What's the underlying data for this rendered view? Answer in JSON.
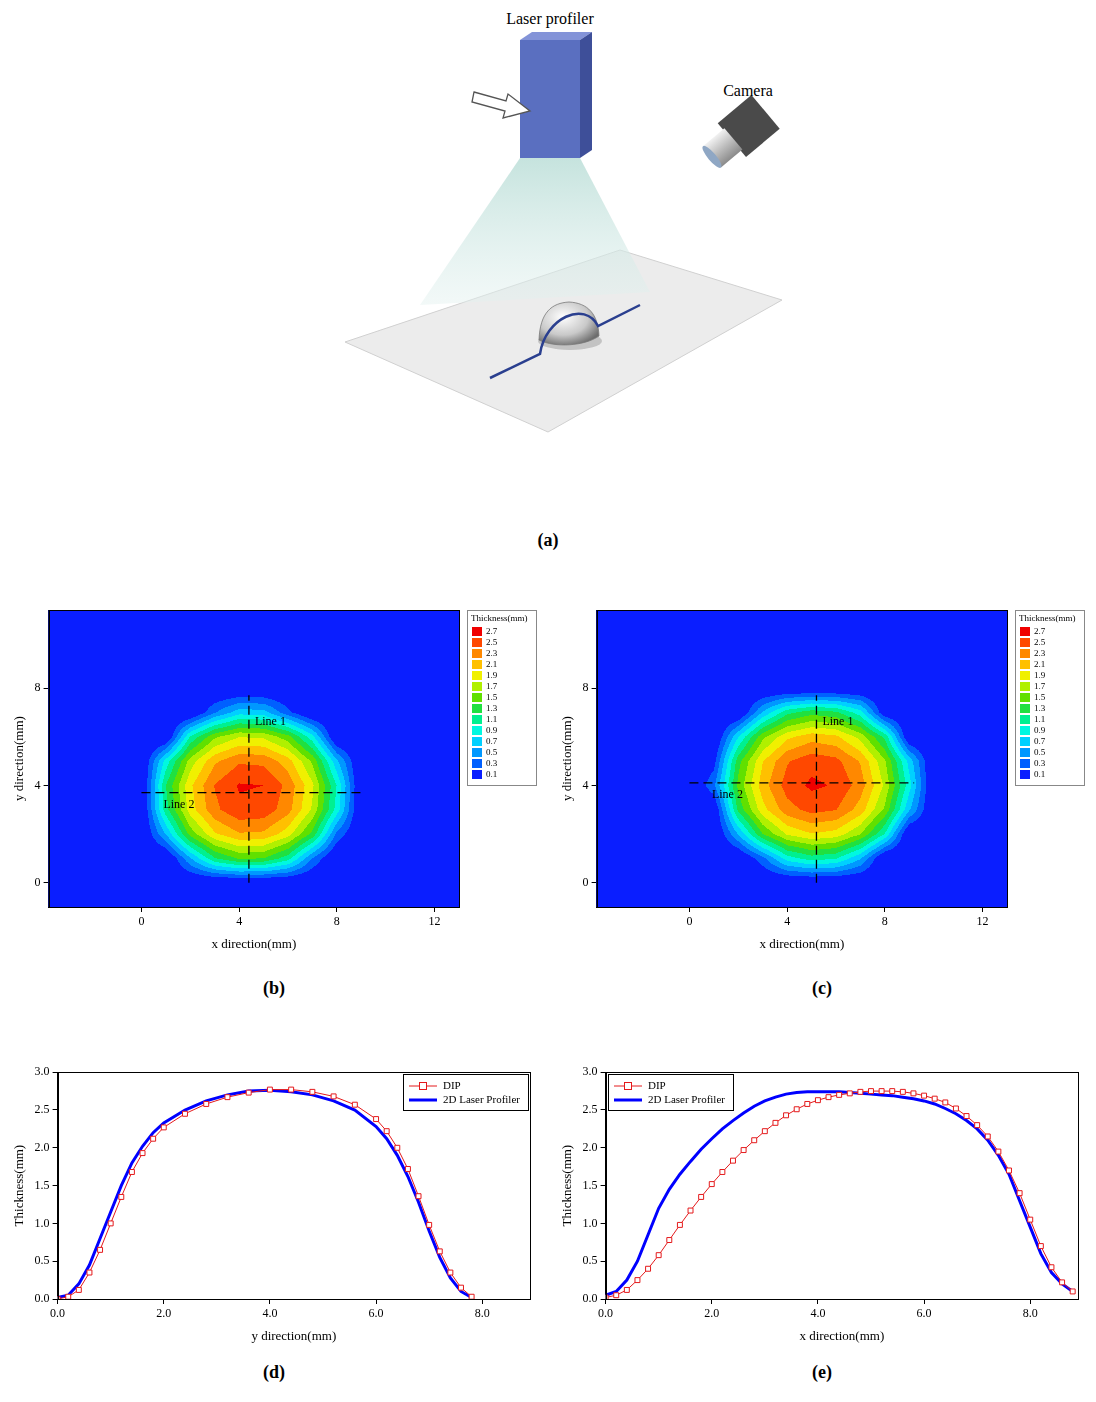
{
  "figure_a": {
    "panel_label": "(a)",
    "nodes": [
      {
        "label": "Laser profiler"
      },
      {
        "label": "Camera"
      }
    ]
  },
  "chart_data": [
    {
      "type": "contour",
      "panel_label": "(b)",
      "xlabel": "x direction(mm)",
      "ylabel": "y direction(mm)",
      "xlim": [
        -3.8,
        13
      ],
      "ylim": [
        -1,
        11.2
      ],
      "xticks": [
        0,
        4,
        8,
        12
      ],
      "yticks": [
        0,
        4,
        8
      ],
      "grid": false,
      "colorbar": {
        "title": "Thickness(mm)",
        "levels": [
          0.1,
          0.3,
          0.5,
          0.7,
          0.9,
          1.1,
          1.3,
          1.5,
          1.7,
          1.9,
          2.1,
          2.3,
          2.5,
          2.7
        ],
        "colors": [
          "#0a1eff",
          "#0060ff",
          "#0098ff",
          "#00d0ff",
          "#00f8e0",
          "#00f090",
          "#20e040",
          "#60e000",
          "#b0f000",
          "#f0f000",
          "#ffc000",
          "#ff8800",
          "#ff4800",
          "#f00000"
        ]
      },
      "field": {
        "x": [
          0,
          1,
          2,
          3,
          4,
          5,
          6,
          7,
          8,
          9
        ],
        "y": [
          0,
          1,
          2,
          3,
          4,
          5,
          6,
          7,
          8
        ],
        "values": [
          [
            0,
            0,
            0,
            0,
            0,
            0,
            0,
            0,
            0,
            0
          ],
          [
            0,
            0,
            0.68,
            1.28,
            1.53,
            1.5,
            1.19,
            0.49,
            0,
            0
          ],
          [
            0,
            0.71,
            1.58,
            2.07,
            2.28,
            2.26,
            1.99,
            1.44,
            0.45,
            0
          ],
          [
            0,
            1.22,
            2.0,
            2.45,
            2.66,
            2.63,
            2.38,
            1.87,
            1.01,
            0
          ],
          [
            0,
            1.3,
            2.06,
            2.51,
            2.72,
            2.7,
            2.44,
            1.94,
            1.09,
            0
          ],
          [
            0,
            0.98,
            1.79,
            2.26,
            2.47,
            2.45,
            2.19,
            1.66,
            0.74,
            0
          ],
          [
            0,
            0,
            1.12,
            1.66,
            1.89,
            1.86,
            1.58,
            0.97,
            0,
            0
          ],
          [
            0,
            0,
            0,
            0.48,
            0.81,
            0.78,
            0.36,
            0,
            0,
            0
          ],
          [
            0,
            0,
            0,
            0,
            0,
            0,
            0,
            0,
            0,
            0
          ]
        ]
      },
      "lines": [
        {
          "label": "Line 1",
          "x": [
            4.4,
            4.4
          ],
          "y": [
            0,
            7.7
          ]
        },
        {
          "label": "Line 2",
          "x": [
            0,
            9
          ],
          "y": [
            3.7,
            3.7
          ]
        }
      ]
    },
    {
      "type": "contour",
      "panel_label": "(c)",
      "xlabel": "x direction(mm)",
      "ylabel": "y direction(mm)",
      "xlim": [
        -3.8,
        13
      ],
      "ylim": [
        -1,
        11.2
      ],
      "xticks": [
        0,
        4,
        8,
        12
      ],
      "yticks": [
        0,
        4,
        8
      ],
      "grid": false,
      "colorbar": {
        "title": "Thickness(mm)",
        "levels": [
          0.1,
          0.3,
          0.5,
          0.7,
          0.9,
          1.1,
          1.3,
          1.5,
          1.7,
          1.9,
          2.1,
          2.3,
          2.5,
          2.7
        ],
        "colors": [
          "#0a1eff",
          "#0060ff",
          "#0098ff",
          "#00d0ff",
          "#00f8e0",
          "#00f090",
          "#20e040",
          "#60e000",
          "#b0f000",
          "#f0f000",
          "#ffc000",
          "#ff8800",
          "#ff4800",
          "#f00000"
        ]
      },
      "field": {
        "x": [
          0,
          1,
          2,
          3,
          4,
          5,
          6,
          7,
          8,
          9,
          10
        ],
        "y": [
          0,
          1,
          2,
          3,
          4,
          5,
          6,
          7,
          8
        ],
        "values": [
          [
            0,
            0,
            0,
            0,
            0,
            0,
            0,
            0,
            0,
            0,
            0
          ],
          [
            0,
            0,
            0,
            0.43,
            1.0,
            1.2,
            1.12,
            0.72,
            0,
            0,
            0
          ],
          [
            0,
            0,
            0.71,
            1.5,
            1.93,
            2.09,
            2.02,
            1.71,
            1.09,
            0,
            0
          ],
          [
            0,
            0.05,
            1.35,
            2.03,
            2.42,
            2.57,
            2.51,
            2.21,
            1.66,
            0.73,
            0
          ],
          [
            0,
            0.45,
            1.56,
            2.21,
            2.59,
            2.74,
            2.68,
            2.4,
            1.86,
            0.98,
            0
          ],
          [
            0,
            0.21,
            1.42,
            2.09,
            2.48,
            2.63,
            2.56,
            2.28,
            1.73,
            0.82,
            0
          ],
          [
            0,
            0,
            0.89,
            1.64,
            2.05,
            2.21,
            2.14,
            1.83,
            1.24,
            0.04,
            0
          ],
          [
            0,
            0,
            0,
            0.72,
            1.23,
            1.42,
            1.34,
            0.98,
            0.1,
            0,
            0
          ],
          [
            0,
            0,
            0,
            0,
            0,
            0,
            0,
            0,
            0,
            0,
            0
          ]
        ]
      },
      "lines": [
        {
          "label": "Line 1",
          "x": [
            5.2,
            5.2
          ],
          "y": [
            0,
            7.7
          ]
        },
        {
          "label": "Line 2",
          "x": [
            0,
            9.2
          ],
          "y": [
            4.1,
            4.1
          ]
        }
      ]
    },
    {
      "type": "line",
      "panel_label": "(d)",
      "xlabel": "y direction(mm)",
      "ylabel": "Thickness(mm)",
      "xlim": [
        0,
        8.9
      ],
      "ylim": [
        0,
        3
      ],
      "xticks": [
        {
          "value": 0,
          "label": "0.0"
        },
        {
          "value": 2,
          "label": "2.0"
        },
        {
          "value": 4,
          "label": "4.0"
        },
        {
          "value": 6,
          "label": "6.0"
        },
        {
          "value": 8,
          "label": "8.0"
        }
      ],
      "yticks": [
        {
          "value": 0,
          "label": "0.0"
        },
        0.5,
        {
          "value": 1,
          "label": "1.0"
        },
        1.5,
        {
          "value": 2,
          "label": "2.0"
        },
        2.5,
        {
          "value": 3,
          "label": "3.0"
        }
      ],
      "grid": false,
      "legend": "upper right",
      "x": [
        0,
        0.2,
        0.4,
        0.6,
        0.8,
        1.0,
        1.2,
        1.4,
        1.6,
        1.8,
        2.0,
        2.4,
        2.8,
        3.2,
        3.6,
        4.0,
        4.4,
        4.8,
        5.2,
        5.6,
        6.0,
        6.2,
        6.4,
        6.6,
        6.8,
        7.0,
        7.2,
        7.4,
        7.6,
        7.8
      ],
      "series": [
        {
          "name": "DIP",
          "color": "#e41a1c",
          "marker": "square",
          "line_style": "solid",
          "values": [
            0,
            0.03,
            0.12,
            0.35,
            0.65,
            1.0,
            1.35,
            1.68,
            1.93,
            2.12,
            2.27,
            2.45,
            2.58,
            2.67,
            2.73,
            2.77,
            2.77,
            2.74,
            2.68,
            2.57,
            2.38,
            2.22,
            2.0,
            1.72,
            1.36,
            0.98,
            0.63,
            0.35,
            0.15,
            0.03
          ]
        },
        {
          "name": "2D Laser Profiler",
          "color": "#0000ff",
          "marker": "none",
          "line_style": "solid",
          "values": [
            0.02,
            0.05,
            0.2,
            0.45,
            0.8,
            1.15,
            1.5,
            1.8,
            2.02,
            2.2,
            2.33,
            2.5,
            2.62,
            2.7,
            2.75,
            2.76,
            2.74,
            2.7,
            2.62,
            2.5,
            2.28,
            2.12,
            1.9,
            1.62,
            1.28,
            0.9,
            0.55,
            0.28,
            0.1,
            0.02
          ]
        }
      ]
    },
    {
      "type": "line",
      "panel_label": "(e)",
      "xlabel": "x direction(mm)",
      "ylabel": "Thickness(mm)",
      "xlim": [
        0,
        8.9
      ],
      "ylim": [
        0,
        3
      ],
      "xticks": [
        {
          "value": 0,
          "label": "0.0"
        },
        {
          "value": 2,
          "label": "2.0"
        },
        {
          "value": 4,
          "label": "4.0"
        },
        {
          "value": 6,
          "label": "6.0"
        },
        {
          "value": 8,
          "label": "8.0"
        }
      ],
      "yticks": [
        {
          "value": 0,
          "label": "0.0"
        },
        0.5,
        {
          "value": 1,
          "label": "1.0"
        },
        1.5,
        {
          "value": 2,
          "label": "2.0"
        },
        2.5,
        {
          "value": 3,
          "label": "3.0"
        }
      ],
      "grid": false,
      "legend": "upper left",
      "x": [
        0,
        0.2,
        0.4,
        0.6,
        0.8,
        1.0,
        1.2,
        1.4,
        1.6,
        1.8,
        2.0,
        2.2,
        2.4,
        2.6,
        2.8,
        3.0,
        3.2,
        3.4,
        3.6,
        3.8,
        4.0,
        4.2,
        4.4,
        4.6,
        4.8,
        5.0,
        5.2,
        5.4,
        5.6,
        5.8,
        6.0,
        6.2,
        6.4,
        6.6,
        6.8,
        7.0,
        7.2,
        7.4,
        7.6,
        7.8,
        8.0,
        8.2,
        8.4,
        8.6,
        8.8
      ],
      "series": [
        {
          "name": "DIP",
          "color": "#e41a1c",
          "marker": "square",
          "line_style": "solid",
          "values": [
            0.02,
            0.05,
            0.12,
            0.25,
            0.4,
            0.58,
            0.78,
            0.98,
            1.17,
            1.35,
            1.52,
            1.68,
            1.83,
            1.97,
            2.1,
            2.22,
            2.33,
            2.43,
            2.51,
            2.58,
            2.63,
            2.67,
            2.7,
            2.72,
            2.74,
            2.75,
            2.75,
            2.75,
            2.74,
            2.72,
            2.69,
            2.65,
            2.6,
            2.52,
            2.42,
            2.3,
            2.15,
            1.95,
            1.7,
            1.4,
            1.05,
            0.7,
            0.42,
            0.22,
            0.1
          ]
        },
        {
          "name": "2D Laser Profiler",
          "color": "#0000ff",
          "marker": "none",
          "line_style": "solid",
          "values": [
            0.05,
            0.1,
            0.25,
            0.5,
            0.85,
            1.2,
            1.45,
            1.65,
            1.82,
            1.98,
            2.12,
            2.25,
            2.36,
            2.46,
            2.55,
            2.62,
            2.67,
            2.71,
            2.73,
            2.74,
            2.74,
            2.74,
            2.74,
            2.73,
            2.72,
            2.71,
            2.7,
            2.69,
            2.67,
            2.65,
            2.62,
            2.58,
            2.52,
            2.45,
            2.36,
            2.25,
            2.1,
            1.9,
            1.65,
            1.3,
            0.95,
            0.6,
            0.35,
            0.2,
            0.1
          ]
        }
      ]
    }
  ]
}
